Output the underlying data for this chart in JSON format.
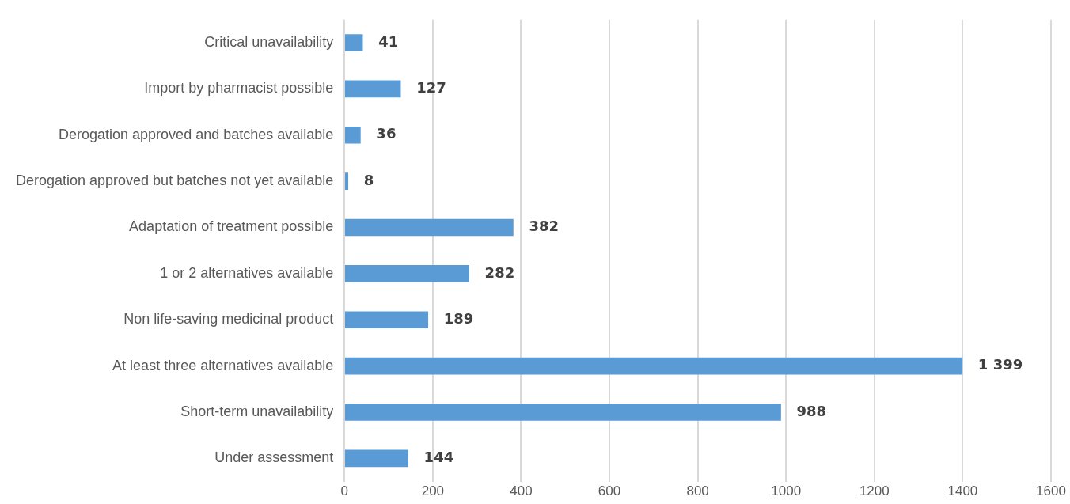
{
  "chart_data": {
    "type": "bar",
    "orientation": "horizontal",
    "categories": [
      "Critical unavailability",
      "Import by pharmacist possible",
      "Derogation approved and batches available",
      "Derogation approved but batches not yet available",
      "Adaptation of treatment possible",
      "1 or 2 alternatives available",
      "Non life-saving medicinal product",
      "At least three alternatives available",
      "Short-term unavailability",
      "Under assessment"
    ],
    "values": [
      41,
      127,
      36,
      8,
      382,
      282,
      189,
      1399,
      988,
      144
    ],
    "value_labels": [
      "41",
      "127",
      "36",
      "8",
      "382",
      "282",
      "189",
      "1 399",
      "988",
      "144"
    ],
    "color": "#5b9bd5",
    "xlim": [
      0,
      1600
    ],
    "xticks": [
      0,
      200,
      400,
      600,
      800,
      1000,
      1200,
      1400,
      1600
    ],
    "grid": "x"
  }
}
